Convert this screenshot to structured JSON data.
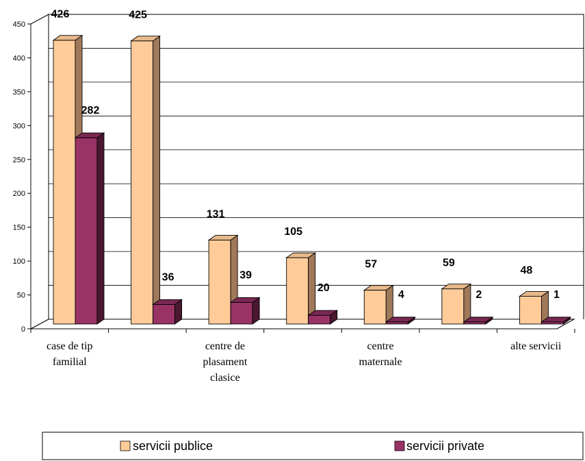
{
  "chart_data": {
    "type": "bar",
    "categories": [
      [
        "case de tip",
        "familial"
      ],
      [],
      [
        "centre de",
        "plasament",
        "clasice"
      ],
      [],
      [
        "centre",
        "maternale"
      ],
      [],
      [
        "alte servicii"
      ]
    ],
    "series": [
      {
        "name": "servicii publice",
        "values": [
          426,
          425,
          131,
          105,
          57,
          59,
          48
        ]
      },
      {
        "name": "servicii private",
        "values": [
          282,
          36,
          39,
          20,
          4,
          2,
          1
        ]
      }
    ],
    "ylim": [
      0,
      450
    ],
    "yticks": [
      0,
      50,
      100,
      150,
      200,
      250,
      300,
      350,
      400,
      450
    ],
    "grid": true,
    "legend_position": "bottom",
    "colors": {
      "publice_front": "#FFCC99",
      "publice_side": "#A0795A",
      "publice_top": "#E6B88A",
      "private_front": "#993366",
      "private_side": "#4A1830",
      "private_top": "#7A2852"
    }
  }
}
